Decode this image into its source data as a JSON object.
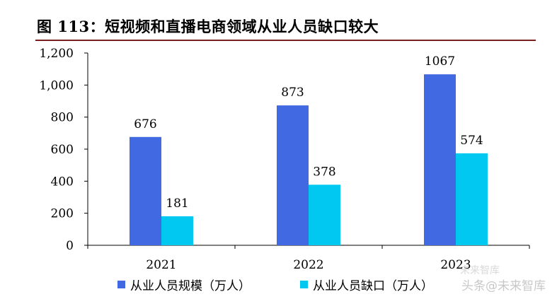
{
  "header": {
    "title": "图 113：短视频和直播电商领域从业人员缺口较大"
  },
  "chart_data": {
    "type": "bar",
    "categories": [
      "2021",
      "2022",
      "2023"
    ],
    "series": [
      {
        "name": "从业人员规模（万人）",
        "values": [
          676,
          873,
          1067
        ],
        "color": "#4169e1"
      },
      {
        "name": "从业人员缺口（万人）",
        "values": [
          181,
          378,
          574
        ],
        "color": "#00c8f0"
      }
    ],
    "yticks": [
      "0",
      "200",
      "400",
      "600",
      "800",
      "1,000",
      "1,200"
    ],
    "ylim": [
      0,
      1200
    ],
    "grid": false,
    "legend_position": "bottom"
  },
  "watermark": {
    "line1": "未来智库",
    "line2": "头条@未来智库"
  }
}
